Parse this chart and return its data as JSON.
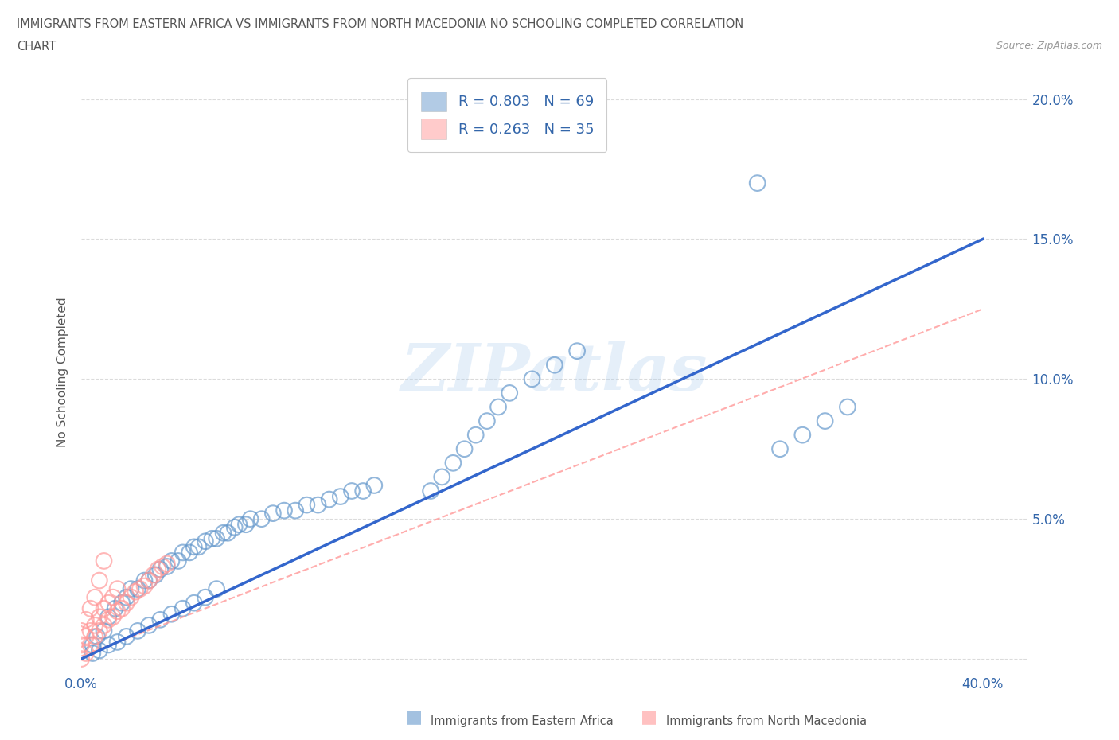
{
  "title_line1": "IMMIGRANTS FROM EASTERN AFRICA VS IMMIGRANTS FROM NORTH MACEDONIA NO SCHOOLING COMPLETED CORRELATION",
  "title_line2": "CHART",
  "source": "Source: ZipAtlas.com",
  "ylabel": "No Schooling Completed",
  "xlim": [
    0.0,
    0.42
  ],
  "ylim": [
    -0.005,
    0.21
  ],
  "blue_color": "#6699CC",
  "pink_color": "#FF9999",
  "blue_line_color": "#3366CC",
  "pink_line_color": "#FF9999",
  "blue_R": 0.803,
  "blue_N": 69,
  "pink_R": 0.263,
  "pink_N": 35,
  "blue_scatter_x": [
    0.005,
    0.007,
    0.01,
    0.012,
    0.015,
    0.018,
    0.02,
    0.022,
    0.025,
    0.028,
    0.03,
    0.033,
    0.035,
    0.038,
    0.04,
    0.043,
    0.045,
    0.048,
    0.05,
    0.052,
    0.055,
    0.058,
    0.06,
    0.063,
    0.065,
    0.068,
    0.07,
    0.073,
    0.075,
    0.08,
    0.085,
    0.09,
    0.095,
    0.1,
    0.105,
    0.11,
    0.115,
    0.12,
    0.125,
    0.13,
    0.005,
    0.008,
    0.012,
    0.016,
    0.02,
    0.025,
    0.03,
    0.035,
    0.04,
    0.045,
    0.05,
    0.055,
    0.06,
    0.155,
    0.16,
    0.165,
    0.17,
    0.175,
    0.18,
    0.185,
    0.19,
    0.2,
    0.21,
    0.22,
    0.3,
    0.31,
    0.32,
    0.33,
    0.34
  ],
  "blue_scatter_y": [
    0.005,
    0.008,
    0.01,
    0.015,
    0.018,
    0.02,
    0.022,
    0.025,
    0.025,
    0.028,
    0.028,
    0.03,
    0.032,
    0.033,
    0.035,
    0.035,
    0.038,
    0.038,
    0.04,
    0.04,
    0.042,
    0.043,
    0.043,
    0.045,
    0.045,
    0.047,
    0.048,
    0.048,
    0.05,
    0.05,
    0.052,
    0.053,
    0.053,
    0.055,
    0.055,
    0.057,
    0.058,
    0.06,
    0.06,
    0.062,
    0.002,
    0.003,
    0.005,
    0.006,
    0.008,
    0.01,
    0.012,
    0.014,
    0.016,
    0.018,
    0.02,
    0.022,
    0.025,
    0.06,
    0.065,
    0.07,
    0.075,
    0.08,
    0.085,
    0.09,
    0.095,
    0.1,
    0.105,
    0.11,
    0.17,
    0.075,
    0.08,
    0.085,
    0.09
  ],
  "pink_scatter_x": [
    0.0,
    0.002,
    0.004,
    0.006,
    0.008,
    0.01,
    0.012,
    0.014,
    0.016,
    0.018,
    0.02,
    0.022,
    0.024,
    0.026,
    0.028,
    0.03,
    0.032,
    0.034,
    0.036,
    0.038,
    0.0,
    0.002,
    0.004,
    0.006,
    0.008,
    0.01,
    0.012,
    0.014,
    0.016,
    0.0,
    0.002,
    0.004,
    0.006,
    0.008,
    0.01
  ],
  "pink_scatter_y": [
    0.0,
    0.002,
    0.005,
    0.008,
    0.01,
    0.012,
    0.014,
    0.015,
    0.017,
    0.018,
    0.02,
    0.022,
    0.024,
    0.025,
    0.026,
    0.028,
    0.03,
    0.032,
    0.033,
    0.034,
    0.005,
    0.008,
    0.01,
    0.012,
    0.015,
    0.018,
    0.02,
    0.022,
    0.025,
    0.01,
    0.014,
    0.018,
    0.022,
    0.028,
    0.035
  ],
  "watermark_text": "ZIPatlas",
  "background_color": "#FFFFFF",
  "grid_color": "#CCCCCC"
}
